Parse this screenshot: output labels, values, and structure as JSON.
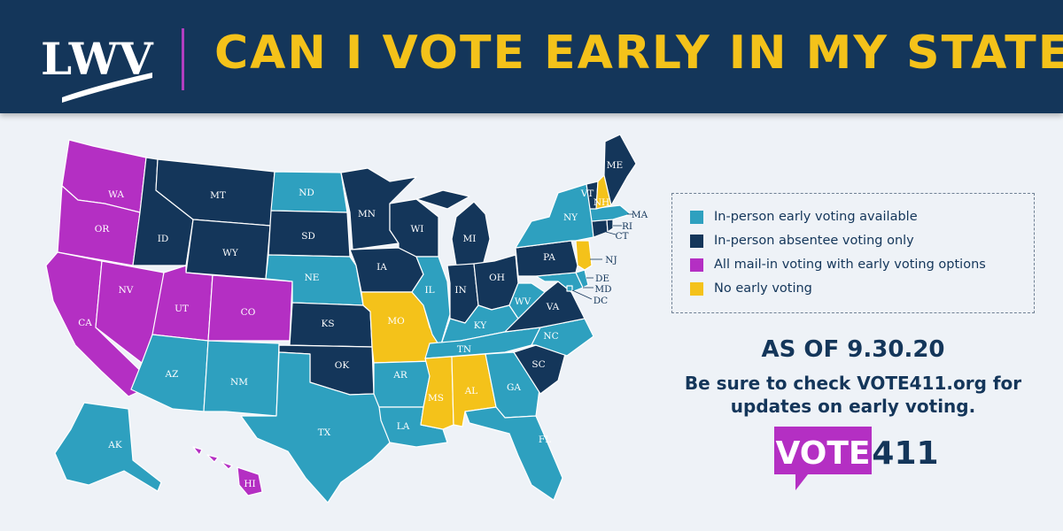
{
  "header": {
    "logo_text": "LWV",
    "title": "CAN I VOTE EARLY IN MY STATE?"
  },
  "colors": {
    "header_bg": "#14365a",
    "title": "#f4c21a",
    "in_person_early": "#2ea0bf",
    "absentee_only": "#14365a",
    "mail_in": "#b42fc3",
    "no_early": "#f4c21a",
    "background": "#eef2f7"
  },
  "legend": {
    "items": [
      {
        "label": "In-person early voting available",
        "category": "in_person_early",
        "color": "#2ea0bf"
      },
      {
        "label": "In-person absentee voting only",
        "category": "absentee_only",
        "color": "#14365a"
      },
      {
        "label": "All mail-in voting with early voting options",
        "category": "mail_in",
        "color": "#b42fc3"
      },
      {
        "label": "No early voting",
        "category": "no_early",
        "color": "#f4c21a"
      }
    ]
  },
  "states": {
    "WA": "mail_in",
    "OR": "mail_in",
    "CA": "mail_in",
    "NV": "mail_in",
    "UT": "mail_in",
    "CO": "mail_in",
    "HI": "mail_in",
    "ID": "absentee_only",
    "MT": "absentee_only",
    "WY": "absentee_only",
    "SD": "absentee_only",
    "MN": "absentee_only",
    "WI": "absentee_only",
    "IA": "absentee_only",
    "KS": "absentee_only",
    "OK": "absentee_only",
    "MI": "absentee_only",
    "IN": "absentee_only",
    "OH": "absentee_only",
    "PA": "absentee_only",
    "VA": "absentee_only",
    "SC": "absentee_only",
    "ME": "absentee_only",
    "VT": "absentee_only",
    "RI": "absentee_only",
    "CT": "absentee_only",
    "ND": "in_person_early",
    "NE": "in_person_early",
    "AZ": "in_person_early",
    "NM": "in_person_early",
    "TX": "in_person_early",
    "AR": "in_person_early",
    "LA": "in_person_early",
    "IL": "in_person_early",
    "KY": "in_person_early",
    "TN": "in_person_early",
    "GA": "in_person_early",
    "FL": "in_person_early",
    "NC": "in_person_early",
    "WV": "in_person_early",
    "NY": "in_person_early",
    "MA": "in_person_early",
    "MD": "in_person_early",
    "DE": "in_person_early",
    "DC": "in_person_early",
    "AK": "in_person_early",
    "MO": "no_early",
    "MS": "no_early",
    "AL": "no_early",
    "NH": "no_early",
    "NJ": "no_early"
  },
  "as_of": "AS OF 9.30.20",
  "check_text_line1": "Be sure to check VOTE411.org for",
  "check_text_line2": "updates on early voting.",
  "vote_logo": {
    "part1": "VOTE",
    "part2": "411"
  }
}
